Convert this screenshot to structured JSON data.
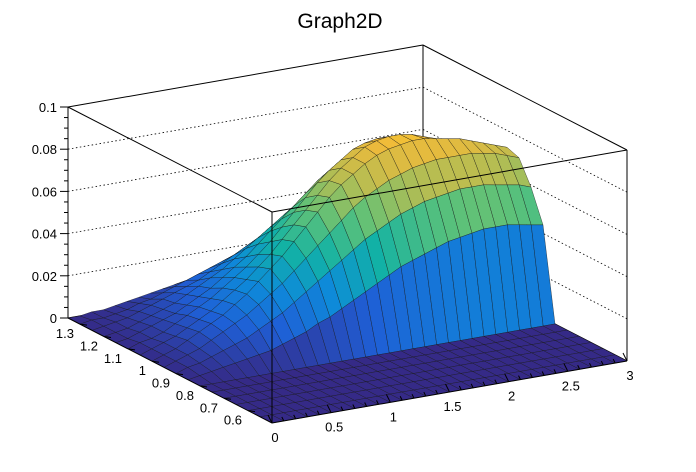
{
  "chart_data": {
    "type": "surface3d",
    "title": "Graph2D",
    "xlabel": "",
    "ylabel": "",
    "zlabel": "",
    "xlim": [
      0,
      3
    ],
    "ylim": [
      0.5,
      1.35
    ],
    "zlim": [
      0,
      0.1
    ],
    "x_ticks": [
      "0",
      "0.5",
      "1",
      "1.5",
      "2",
      "2.5",
      "3"
    ],
    "y_ticks": [
      "0.6",
      "0.7",
      "0.8",
      "0.9",
      "1",
      "1.1",
      "1.2",
      "1.3"
    ],
    "z_ticks": [
      "0",
      "0.02",
      "0.04",
      "0.06",
      "0.08",
      "0.1"
    ],
    "grid": true,
    "palette": [
      "#352a87",
      "#1f5fd6",
      "#0d8bd9",
      "#12b2a5",
      "#5cc179",
      "#b4bd53",
      "#f0ba3a",
      "#f9fb0e"
    ],
    "surface": {
      "x_range": [
        0,
        3
      ],
      "x_steps": 30,
      "y_range": [
        0.5,
        1.35
      ],
      "y_steps": 17,
      "z": [
        [
          0.0,
          0.0,
          0.0,
          0.0,
          0.0,
          0.0,
          0.0,
          0.0,
          0.0,
          0.0,
          0.0,
          0.0,
          0.0,
          0.0,
          0.0,
          0.0,
          0.0,
          0.0,
          0.0,
          0.0,
          0.0,
          0.0,
          0.0,
          0.0,
          0.0,
          0.0,
          0.0,
          0.0,
          0.0,
          0.0,
          0.0
        ],
        [
          0.0,
          0.0,
          0.0,
          0.0,
          0.0,
          0.0,
          0.0,
          0.0,
          0.0,
          0.0,
          0.0,
          0.0,
          0.0,
          0.0,
          0.0,
          0.0,
          0.0,
          0.0,
          0.0,
          0.0,
          0.0,
          0.0,
          0.0,
          0.0,
          0.0,
          0.0,
          0.0,
          0.0,
          0.0,
          0.0,
          0.0
        ],
        [
          0.0,
          0.0,
          0.0,
          0.0,
          0.0,
          0.0,
          0.0,
          0.0,
          0.0,
          0.0,
          0.0,
          0.0,
          0.0,
          0.0,
          0.0,
          0.0,
          0.0,
          0.0,
          0.0,
          0.0,
          0.0,
          0.0,
          0.0,
          0.0,
          0.0,
          0.0,
          0.0,
          0.0,
          0.0,
          0.0,
          0.0
        ],
        [
          0.0,
          0.0,
          0.0,
          0.0,
          0.0,
          0.0,
          0.0,
          0.0,
          0.0,
          0.0,
          0.0,
          0.0,
          0.0,
          0.0,
          0.0,
          0.0,
          0.0,
          0.0,
          0.0,
          0.0,
          0.0,
          0.0,
          0.0,
          0.0,
          0.0,
          0.0,
          0.0,
          0.0,
          0.0,
          0.0,
          0.0
        ],
        [
          0.0,
          0.0,
          0.0,
          0.0,
          0.0,
          0.0,
          0.0,
          0.0,
          0.0,
          0.0,
          0.0,
          0.0,
          0.0,
          0.0,
          0.0,
          0.0,
          0.0,
          0.0,
          0.0,
          0.0,
          0.0,
          0.0,
          0.0,
          0.0,
          0.0,
          0.0,
          0.0,
          0.0,
          0.0,
          0.0,
          0.0
        ],
        [
          0.0,
          0.0,
          0.0,
          0.0,
          0.0,
          0.0,
          0.0,
          0.0,
          0.0,
          0.0,
          0.0,
          0.0,
          0.0,
          0.0,
          0.0,
          0.0,
          0.0,
          0.0,
          0.0,
          0.0,
          0.0,
          0.0,
          0.0,
          0.0,
          0.0,
          0.0,
          0.0,
          0.0,
          0.0,
          0.0,
          0.0
        ],
        [
          0.0,
          0.0,
          0.0,
          0.0,
          0.0,
          0.0,
          0.0,
          0.0,
          0.0,
          0.0,
          0.0,
          0.0,
          0.0,
          0.0,
          0.0,
          0.0,
          0.0,
          0.0,
          0.0,
          0.0,
          0.0,
          0.0,
          0.0,
          0.0,
          0.0,
          0.0,
          0.0,
          0.0,
          0.0,
          0.0,
          0.0
        ],
        [
          0.0,
          0.001,
          0.002,
          0.003,
          0.004,
          0.005,
          0.006,
          0.007,
          0.009,
          0.011,
          0.013,
          0.016,
          0.018,
          0.021,
          0.024,
          0.027,
          0.03,
          0.033,
          0.036,
          0.038,
          0.04,
          0.042,
          0.044,
          0.045,
          0.046,
          0.047,
          0.047,
          0.047,
          0.046,
          0.045,
          0.044
        ],
        [
          0.0,
          0.002,
          0.003,
          0.005,
          0.007,
          0.009,
          0.011,
          0.014,
          0.017,
          0.02,
          0.024,
          0.028,
          0.032,
          0.036,
          0.04,
          0.044,
          0.048,
          0.051,
          0.054,
          0.057,
          0.059,
          0.061,
          0.062,
          0.063,
          0.064,
          0.064,
          0.064,
          0.063,
          0.062,
          0.061,
          0.059
        ],
        [
          0.0,
          0.002,
          0.004,
          0.006,
          0.009,
          0.012,
          0.015,
          0.018,
          0.022,
          0.026,
          0.03,
          0.035,
          0.04,
          0.045,
          0.05,
          0.055,
          0.06,
          0.064,
          0.067,
          0.07,
          0.072,
          0.074,
          0.075,
          0.076,
          0.076,
          0.076,
          0.076,
          0.075,
          0.074,
          0.072,
          0.07
        ],
        [
          0.0,
          0.002,
          0.004,
          0.007,
          0.01,
          0.013,
          0.016,
          0.02,
          0.024,
          0.029,
          0.034,
          0.039,
          0.045,
          0.051,
          0.057,
          0.063,
          0.068,
          0.072,
          0.076,
          0.079,
          0.081,
          0.082,
          0.083,
          0.083,
          0.082,
          0.081,
          0.08,
          0.078,
          0.076,
          0.074,
          0.072
        ],
        [
          0.0,
          0.002,
          0.004,
          0.006,
          0.009,
          0.012,
          0.015,
          0.019,
          0.023,
          0.027,
          0.032,
          0.037,
          0.043,
          0.049,
          0.055,
          0.061,
          0.067,
          0.072,
          0.076,
          0.08,
          0.082,
          0.083,
          0.083,
          0.082,
          0.08,
          0.077,
          0.074,
          0.071,
          0.068,
          0.065,
          0.062
        ],
        [
          0.0,
          0.002,
          0.003,
          0.005,
          0.008,
          0.011,
          0.014,
          0.017,
          0.021,
          0.025,
          0.029,
          0.034,
          0.039,
          0.045,
          0.051,
          0.057,
          0.063,
          0.068,
          0.072,
          0.076,
          0.078,
          0.079,
          0.079,
          0.077,
          0.074,
          0.07,
          0.066,
          0.062,
          0.058,
          0.054,
          0.05
        ],
        [
          0.0,
          0.001,
          0.003,
          0.005,
          0.007,
          0.009,
          0.012,
          0.015,
          0.018,
          0.022,
          0.026,
          0.03,
          0.035,
          0.04,
          0.045,
          0.05,
          0.055,
          0.06,
          0.064,
          0.067,
          0.069,
          0.07,
          0.07,
          0.068,
          0.065,
          0.061,
          0.057,
          0.052,
          0.048,
          0.044,
          0.04
        ],
        [
          0.0,
          0.001,
          0.002,
          0.004,
          0.006,
          0.008,
          0.01,
          0.013,
          0.016,
          0.019,
          0.022,
          0.026,
          0.03,
          0.034,
          0.038,
          0.042,
          0.046,
          0.05,
          0.053,
          0.055,
          0.057,
          0.057,
          0.056,
          0.054,
          0.051,
          0.047,
          0.043,
          0.039,
          0.035,
          0.031,
          0.028
        ],
        [
          0.0,
          0.001,
          0.002,
          0.003,
          0.005,
          0.007,
          0.009,
          0.011,
          0.013,
          0.015,
          0.018,
          0.021,
          0.024,
          0.027,
          0.03,
          0.033,
          0.036,
          0.039,
          0.041,
          0.043,
          0.044,
          0.044,
          0.043,
          0.041,
          0.038,
          0.035,
          0.032,
          0.028,
          0.025,
          0.022,
          0.019
        ],
        [
          0.0,
          0.001,
          0.001,
          0.002,
          0.003,
          0.005,
          0.006,
          0.008,
          0.01,
          0.012,
          0.014,
          0.016,
          0.018,
          0.02,
          0.022,
          0.024,
          0.026,
          0.028,
          0.03,
          0.031,
          0.031,
          0.031,
          0.03,
          0.028,
          0.026,
          0.023,
          0.021,
          0.018,
          0.016,
          0.014,
          0.012
        ],
        [
          0.0,
          0.0,
          0.001,
          0.001,
          0.002,
          0.003,
          0.004,
          0.005,
          0.006,
          0.007,
          0.008,
          0.009,
          0.01,
          0.011,
          0.012,
          0.013,
          0.014,
          0.015,
          0.016,
          0.016,
          0.016,
          0.016,
          0.015,
          0.014,
          0.013,
          0.012,
          0.011,
          0.01,
          0.009,
          0.008,
          0.007
        ]
      ]
    }
  }
}
